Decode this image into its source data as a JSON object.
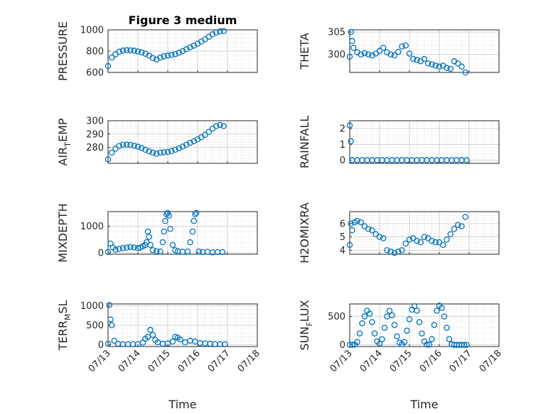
{
  "chart_data": [
    {
      "type": "scatter",
      "title": "Figure 3 medium",
      "ylabel": "PRESSURE",
      "xlim": [
        "07/13",
        "07/18"
      ],
      "ylim": [
        600,
        1000
      ],
      "yticks": [
        "600",
        "800",
        "1000"
      ],
      "xticks": [],
      "xlabel": "",
      "grid": "on (major + minor, dotted)",
      "marker": "open circle",
      "series": [
        {
          "x": [
            "07/13 00:00",
            "07/13 03:00",
            "07/13 06:00",
            "07/13 09:00",
            "07/13 12:00",
            "07/13 15:00",
            "07/13 18:00",
            "07/13 21:00",
            "07/14 00:00",
            "07/14 03:00",
            "07/14 06:00",
            "07/14 09:00",
            "07/14 12:00",
            "07/14 15:00",
            "07/14 18:00",
            "07/14 21:00",
            "07/15 00:00",
            "07/15 03:00",
            "07/15 06:00",
            "07/15 09:00",
            "07/15 12:00",
            "07/15 15:00",
            "07/15 18:00",
            "07/15 21:00",
            "07/16 00:00",
            "07/16 03:00",
            "07/16 06:00",
            "07/16 09:00",
            "07/16 12:00",
            "07/16 15:00",
            "07/16 18:00",
            "07/16 21:00"
          ],
          "y": [
            660,
            740,
            770,
            795,
            805,
            808,
            807,
            804,
            797,
            788,
            775,
            758,
            735,
            722,
            740,
            752,
            758,
            764,
            772,
            785,
            800,
            818,
            836,
            852,
            870,
            890,
            912,
            935,
            958,
            975,
            985,
            988
          ]
        }
      ]
    },
    {
      "type": "scatter",
      "ylabel": "THETA",
      "xlim": [
        "07/13",
        "07/18"
      ],
      "ylim": [
        296,
        305.5
      ],
      "yticks": [
        "300",
        "305"
      ],
      "xticks": [],
      "xlabel": "",
      "grid": "on (major + minor, dotted)",
      "marker": "open circle",
      "series": [
        {
          "x": [
            "07/13 00:00",
            "07/13 01:00",
            "07/13 02:00",
            "07/13 03:00",
            "07/13 06:00",
            "07/13 09:00",
            "07/13 12:00",
            "07/13 15:00",
            "07/13 18:00",
            "07/13 21:00",
            "07/14 00:00",
            "07/14 03:00",
            "07/14 06:00",
            "07/14 09:00",
            "07/14 12:00",
            "07/14 15:00",
            "07/14 18:00",
            "07/14 21:00",
            "07/15 00:00",
            "07/15 03:00",
            "07/15 06:00",
            "07/15 09:00",
            "07/15 12:00",
            "07/15 15:00",
            "07/15 18:00",
            "07/15 21:00",
            "07/16 00:00",
            "07/16 03:00",
            "07/16 06:00",
            "07/16 09:00",
            "07/16 12:00",
            "07/16 15:00",
            "07/16 18:00",
            "07/16 21:00"
          ],
          "y": [
            299.5,
            305,
            303,
            301.5,
            300.5,
            300,
            300.3,
            300,
            299.8,
            300.2,
            300.8,
            301.5,
            300.5,
            300,
            299.8,
            300.6,
            301.8,
            302,
            300.2,
            299,
            298.8,
            298.5,
            299,
            298,
            297.8,
            297.5,
            297.3,
            297.5,
            297,
            296.8,
            298.5,
            298,
            297.3,
            296
          ]
        }
      ]
    },
    {
      "type": "scatter",
      "ylabel": "AIR_TEMP",
      "xlim": [
        "07/13",
        "07/18"
      ],
      "ylim": [
        268,
        300
      ],
      "yticks": [
        "280",
        "290",
        "300"
      ],
      "xticks": [],
      "xlabel": "",
      "grid": "on (major + minor, dotted)",
      "marker": "open circle",
      "series": [
        {
          "x": [
            "07/13 00:00",
            "07/13 03:00",
            "07/13 06:00",
            "07/13 09:00",
            "07/13 12:00",
            "07/13 15:00",
            "07/13 18:00",
            "07/13 21:00",
            "07/14 00:00",
            "07/14 03:00",
            "07/14 06:00",
            "07/14 09:00",
            "07/14 12:00",
            "07/14 15:00",
            "07/14 18:00",
            "07/14 21:00",
            "07/15 00:00",
            "07/15 03:00",
            "07/15 06:00",
            "07/15 09:00",
            "07/15 12:00",
            "07/15 15:00",
            "07/15 18:00",
            "07/15 21:00",
            "07/16 00:00",
            "07/16 03:00",
            "07/16 06:00",
            "07/16 09:00",
            "07/16 12:00",
            "07/16 15:00",
            "07/16 18:00",
            "07/16 21:00"
          ],
          "y": [
            271,
            276,
            279,
            281,
            282,
            282,
            281.8,
            281.2,
            280.5,
            279.5,
            278.2,
            277,
            276,
            275.2,
            276,
            276.3,
            276.6,
            277.2,
            278.2,
            279.3,
            280.6,
            282,
            283.4,
            284.6,
            286,
            287.6,
            289.4,
            291.6,
            294,
            296,
            296.8,
            296
          ]
        }
      ]
    },
    {
      "type": "scatter",
      "ylabel": "RAINFALL",
      "xlim": [
        "07/13",
        "07/18"
      ],
      "ylim": [
        -0.2,
        2.5
      ],
      "yticks": [
        "0",
        "1",
        "2"
      ],
      "xticks": [],
      "xlabel": "",
      "grid": "on (major + minor, dotted)",
      "marker": "open circle",
      "series": [
        {
          "x": [
            "07/13 00:00",
            "07/13 01:00",
            "07/13 02:00",
            "07/13 06:00",
            "07/13 10:00",
            "07/13 14:00",
            "07/13 18:00",
            "07/13 22:00",
            "07/14 02:00",
            "07/14 06:00",
            "07/14 10:00",
            "07/14 14:00",
            "07/14 18:00",
            "07/14 22:00",
            "07/15 02:00",
            "07/15 06:00",
            "07/15 10:00",
            "07/15 14:00",
            "07/15 18:00",
            "07/15 22:00",
            "07/16 02:00",
            "07/16 06:00",
            "07/16 10:00",
            "07/16 14:00",
            "07/16 18:00",
            "07/16 22:00"
          ],
          "y": [
            2.2,
            1.2,
            0,
            0,
            0,
            0,
            0,
            0,
            0,
            0,
            0,
            0,
            0,
            0,
            0,
            0,
            0,
            0,
            0,
            0,
            0,
            0,
            0,
            0,
            0,
            0
          ]
        }
      ]
    },
    {
      "type": "scatter",
      "ylabel": "MIXDEPTH",
      "xlim": [
        "07/13",
        "07/18"
      ],
      "ylim": [
        -50,
        1550
      ],
      "yticks": [
        "0",
        "1000"
      ],
      "xticks": [],
      "xlabel": "",
      "grid": "on (major + minor, dotted)",
      "marker": "open circle",
      "series": [
        {
          "x": [
            "07/13 00:00",
            "07/13 02:00",
            "07/13 04:00",
            "07/13 06:00",
            "07/13 09:00",
            "07/13 12:00",
            "07/13 15:00",
            "07/13 18:00",
            "07/13 21:00",
            "07/14 00:00",
            "07/14 02:00",
            "07/14 04:00",
            "07/14 06:00",
            "07/14 07:00",
            "07/14 08:00",
            "07/14 09:00",
            "07/14 10:00",
            "07/14 12:00",
            "07/14 15:00",
            "07/14 18:00",
            "07/14 20:00",
            "07/14 21:00",
            "07/14 22:00",
            "07/14 23:00",
            "07/15 00:00",
            "07/15 01:00",
            "07/15 02:00",
            "07/15 04:00",
            "07/15 06:00",
            "07/15 08:00",
            "07/15 12:00",
            "07/15 16:00",
            "07/15 18:00",
            "07/15 20:00",
            "07/15 21:00",
            "07/15 22:00",
            "07/15 23:00",
            "07/16 01:00",
            "07/16 04:00",
            "07/16 08:00",
            "07/16 12:00",
            "07/16 16:00",
            "07/16 20:00"
          ],
          "y": [
            30,
            350,
            200,
            120,
            150,
            180,
            200,
            220,
            200,
            180,
            200,
            250,
            300,
            400,
            800,
            600,
            300,
            100,
            60,
            50,
            400,
            800,
            1200,
            1450,
            1500,
            1400,
            900,
            300,
            100,
            60,
            40,
            50,
            400,
            800,
            1200,
            1450,
            1500,
            50,
            30,
            40,
            20,
            30,
            30
          ]
        }
      ]
    },
    {
      "type": "scatter",
      "ylabel": "H2OMIXRA",
      "xlim": [
        "07/13",
        "07/18"
      ],
      "ylim": [
        3.7,
        6.9
      ],
      "yticks": [
        "4",
        "5",
        "6"
      ],
      "xticks": [],
      "xlabel": "",
      "grid": "on (major + minor, dotted)",
      "marker": "open circle",
      "series": [
        {
          "x": [
            "07/13 00:00",
            "07/13 01:00",
            "07/13 02:00",
            "07/13 04:00",
            "07/13 06:00",
            "07/13 09:00",
            "07/13 12:00",
            "07/13 15:00",
            "07/13 18:00",
            "07/13 21:00",
            "07/14 00:00",
            "07/14 03:00",
            "07/14 06:00",
            "07/14 09:00",
            "07/14 12:00",
            "07/14 15:00",
            "07/14 18:00",
            "07/14 21:00",
            "07/15 00:00",
            "07/15 03:00",
            "07/15 06:00",
            "07/15 09:00",
            "07/15 12:00",
            "07/15 15:00",
            "07/15 18:00",
            "07/15 21:00",
            "07/16 00:00",
            "07/16 03:00",
            "07/16 06:00",
            "07/16 09:00",
            "07/16 12:00",
            "07/16 15:00",
            "07/16 18:00",
            "07/16 21:00"
          ],
          "y": [
            4.4,
            6.0,
            5.5,
            6.1,
            6.2,
            6.1,
            5.8,
            5.6,
            5.5,
            5.2,
            5.0,
            4.9,
            4.0,
            3.9,
            3.8,
            3.9,
            4.0,
            4.5,
            4.8,
            4.9,
            4.7,
            4.6,
            5.0,
            4.9,
            4.7,
            4.6,
            4.6,
            4.4,
            4.8,
            5.2,
            5.6,
            5.9,
            5.8,
            6.5
          ]
        }
      ]
    },
    {
      "type": "scatter",
      "ylabel": "TERR_MSL",
      "xlim": [
        "07/13",
        "07/18"
      ],
      "ylim": [
        -50,
        1050
      ],
      "yticks": [
        "0",
        "500",
        "1000"
      ],
      "xticks": [
        "07/13",
        "07/14",
        "07/15",
        "07/16",
        "07/17",
        "07/18"
      ],
      "xlabel": "Time",
      "grid": "on (major + minor, dotted)",
      "marker": "open circle",
      "series": [
        {
          "x": [
            "07/13 00:00",
            "07/13 01:00",
            "07/13 02:00",
            "07/13 03:00",
            "07/13 05:00",
            "07/13 08:00",
            "07/13 12:00",
            "07/13 16:00",
            "07/13 20:00",
            "07/14 00:00",
            "07/14 04:00",
            "07/14 06:00",
            "07/14 08:00",
            "07/14 10:00",
            "07/14 12:00",
            "07/14 14:00",
            "07/14 16:00",
            "07/14 20:00",
            "07/15 00:00",
            "07/15 04:00",
            "07/15 06:00",
            "07/15 08:00",
            "07/15 10:00",
            "07/15 14:00",
            "07/15 18:00",
            "07/15 22:00",
            "07/16 02:00",
            "07/16 06:00",
            "07/16 10:00",
            "07/16 14:00",
            "07/16 18:00",
            "07/16 22:00"
          ],
          "y": [
            20,
            1020,
            650,
            500,
            100,
            20,
            10,
            10,
            10,
            10,
            50,
            150,
            200,
            380,
            250,
            120,
            60,
            20,
            30,
            80,
            200,
            180,
            130,
            60,
            100,
            80,
            40,
            30,
            20,
            10,
            10,
            10
          ]
        }
      ]
    },
    {
      "type": "scatter",
      "ylabel": "SUN_FLUX",
      "xlim": [
        "07/13",
        "07/18"
      ],
      "ylim": [
        -30,
        720
      ],
      "yticks": [
        "0",
        "500"
      ],
      "xticks": [
        "07/13",
        "07/14",
        "07/15",
        "07/16",
        "07/17",
        "07/18"
      ],
      "xlabel": "Time",
      "grid": "on (major + minor, dotted)",
      "marker": "open circle",
      "series": [
        {
          "x": [
            "07/13 00:00",
            "07/13 02:00",
            "07/13 04:00",
            "07/13 06:00",
            "07/13 08:00",
            "07/13 10:00",
            "07/13 12:00",
            "07/13 14:00",
            "07/13 16:00",
            "07/13 18:00",
            "07/13 20:00",
            "07/13 22:00",
            "07/14 00:00",
            "07/14 02:00",
            "07/14 04:00",
            "07/14 06:00",
            "07/14 08:00",
            "07/14 10:00",
            "07/14 12:00",
            "07/14 14:00",
            "07/14 16:00",
            "07/14 18:00",
            "07/14 20:00",
            "07/14 22:00",
            "07/15 00:00",
            "07/15 02:00",
            "07/15 04:00",
            "07/15 06:00",
            "07/15 08:00",
            "07/15 10:00",
            "07/15 12:00",
            "07/15 14:00",
            "07/15 16:00",
            "07/15 18:00",
            "07/15 20:00",
            "07/15 22:00",
            "07/16 00:00",
            "07/16 02:00",
            "07/16 04:00",
            "07/16 06:00",
            "07/16 08:00",
            "07/16 10:00",
            "07/16 12:00",
            "07/16 14:00",
            "07/16 16:00",
            "07/16 18:00",
            "07/16 20:00",
            "07/16 22:00"
          ],
          "y": [
            0,
            0,
            5,
            50,
            200,
            380,
            500,
            600,
            550,
            400,
            200,
            60,
            20,
            100,
            300,
            500,
            600,
            520,
            350,
            150,
            40,
            10,
            50,
            250,
            450,
            620,
            680,
            600,
            400,
            200,
            60,
            5,
            5,
            100,
            350,
            600,
            690,
            650,
            500,
            300,
            100,
            10,
            0,
            0,
            0,
            0,
            0,
            0
          ]
        }
      ]
    }
  ],
  "colors": {
    "series": "#0072BD",
    "axis": "#262626",
    "grid": "#d6d6d6"
  }
}
